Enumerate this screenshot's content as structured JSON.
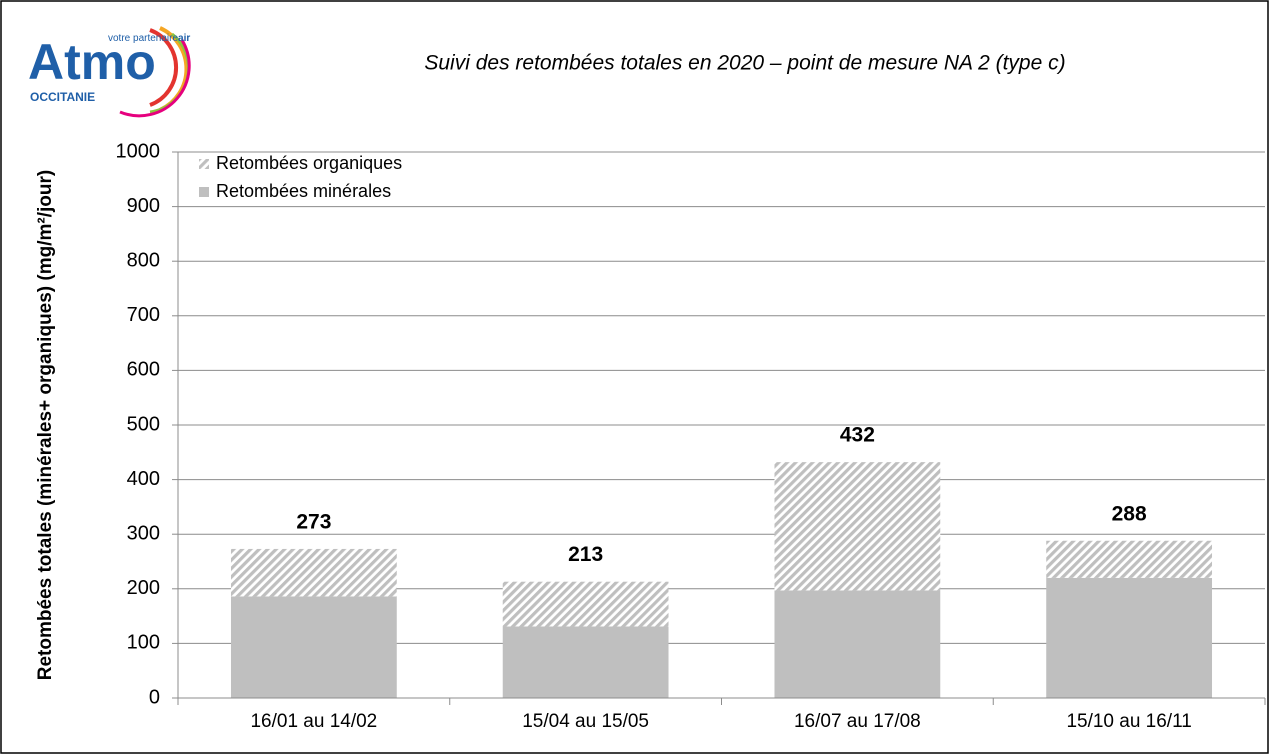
{
  "logo": {
    "brand": "Atmo",
    "tagline": "votre partenaire",
    "tagline_bold": "air",
    "region": "OCCITANIE"
  },
  "chart_data": {
    "type": "stacked_bar",
    "title": "Suivi des retombées totales en 2020 – point de mesure NA 2 (type c)",
    "y_label": "Retombées totales (minérales+ organiques) (mg/m²/jour)",
    "categories": [
      "16/01 au 14/02",
      "15/04 au 15/05",
      "16/07 au 17/08",
      "15/10 au 16/11"
    ],
    "series": [
      {
        "name": "Retombées organiques",
        "color": "#bfbfbf",
        "hatch": true,
        "values": [
          87,
          82,
          235,
          68
        ]
      },
      {
        "name": "Retombées minérales",
        "color": "#bfbfbf",
        "hatch": false,
        "values": [
          186,
          131,
          197,
          220
        ]
      }
    ],
    "totals": [
      273,
      213,
      432,
      288
    ],
    "ylim": [
      0,
      1000
    ],
    "yticks": [
      0,
      100,
      200,
      300,
      400,
      500,
      600,
      700,
      800,
      900,
      1000
    ],
    "grid": true,
    "legend": "top-left"
  }
}
